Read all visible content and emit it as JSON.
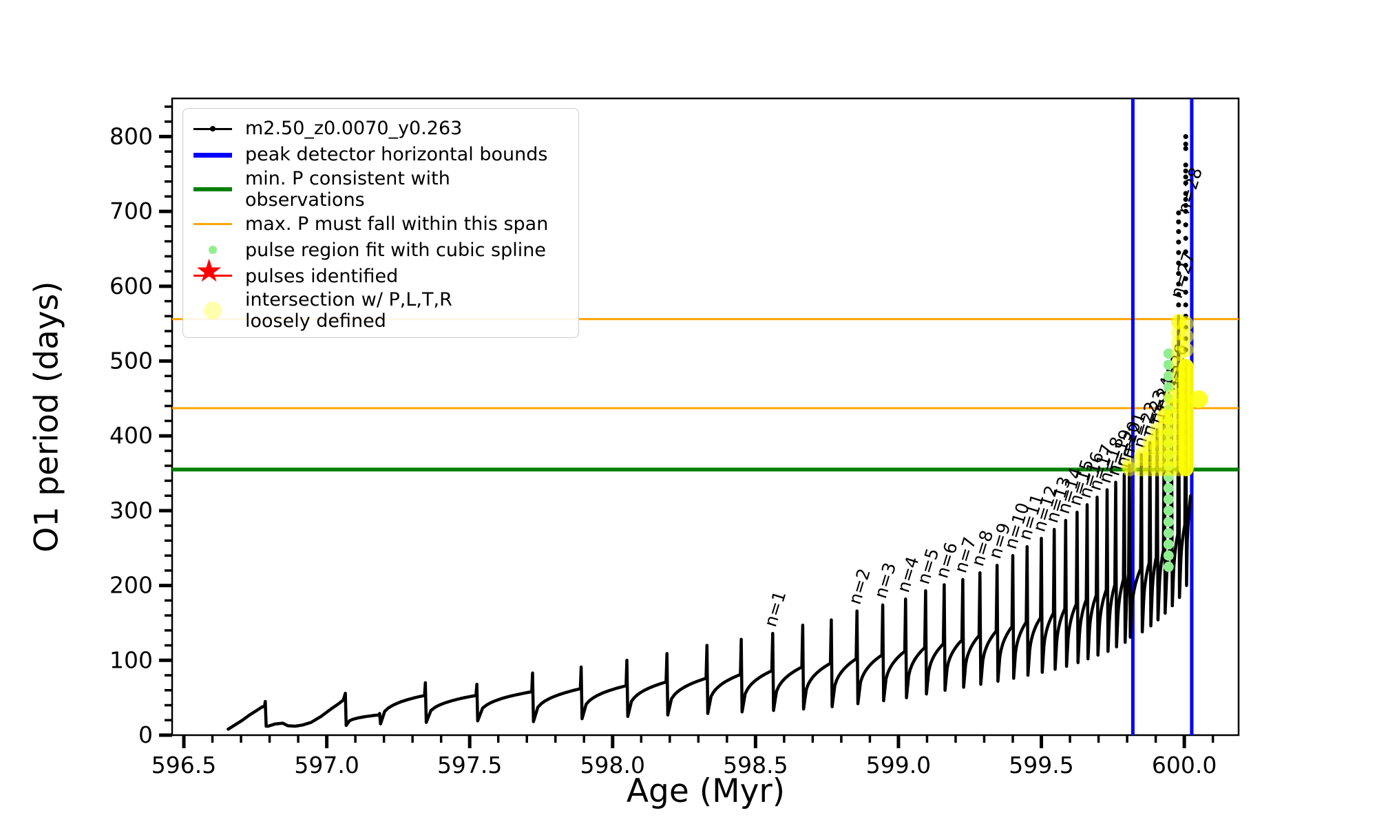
{
  "axes": {
    "xlabel": "Age (Myr)",
    "ylabel": "O1 period (days)",
    "xlim": [
      596.459,
      600.19
    ],
    "ylim": [
      0,
      851
    ],
    "xtick_values": [
      596.5,
      597.0,
      597.5,
      598.0,
      598.5,
      599.0,
      599.5,
      600.0
    ],
    "xtick_labels": [
      "596.5",
      "597.0",
      "597.5",
      "598.0",
      "598.5",
      "599.0",
      "599.5",
      "600.0"
    ],
    "xminor_step": 0.1,
    "ytick_values": [
      0,
      100,
      200,
      300,
      400,
      500,
      600,
      700,
      800
    ],
    "ytick_labels": [
      "0",
      "100",
      "200",
      "300",
      "400",
      "500",
      "600",
      "700",
      "800"
    ],
    "yminor_step": 20
  },
  "legend": {
    "items": [
      {
        "handle": "line-dot",
        "color": "#000000",
        "label": "m2.50_z0.0070_y0.263"
      },
      {
        "handle": "thick-blue",
        "color": "#0000ff",
        "label": "peak detector horizontal bounds"
      },
      {
        "handle": "thick-green",
        "color": "#008000",
        "label": "min. P consistent with observations"
      },
      {
        "handle": "thin-orange",
        "color": "#ffa500",
        "label": "max. P must fall within this span"
      },
      {
        "handle": "dot-green",
        "color": "#90ee90",
        "label": "pulse region fit with cubic spline"
      },
      {
        "handle": "star-red",
        "color": "#ff0000",
        "label": "pulses identified"
      },
      {
        "handle": "dot-yellow",
        "color": "#ffff00",
        "label": "intersection w/ P,L,T,R",
        "label2": "loosely defined"
      }
    ]
  },
  "chart_data": {
    "type": "line",
    "title": "",
    "xlabel": "Age (Myr)",
    "ylabel": "O1 period (days)",
    "series_label": "m2.50_z0.0070_y0.263",
    "series_color": "#000000",
    "lead_in": [
      [
        596.655,
        8
      ],
      [
        596.68,
        14
      ],
      [
        596.705,
        20
      ],
      [
        596.73,
        27
      ],
      [
        596.755,
        33
      ],
      [
        596.775,
        38
      ]
    ],
    "pulses": [
      {
        "x": 596.785,
        "top": 45,
        "end": 38,
        "dip": 12
      },
      {
        "x": 597.065,
        "top": 56,
        "end": 48,
        "dip": 13,
        "ramp": [
          [
            596.795,
            12
          ],
          [
            596.82,
            15
          ],
          [
            596.846,
            16
          ],
          [
            596.864,
            12.5
          ],
          [
            596.89,
            12
          ],
          [
            596.915,
            13.5
          ],
          [
            596.945,
            17
          ],
          [
            596.98,
            25
          ],
          [
            597.015,
            35
          ],
          [
            597.045,
            43
          ],
          [
            597.058,
            47
          ]
        ]
      },
      {
        "x": 597.185,
        "top": 29,
        "end": 27,
        "dip": 15
      },
      {
        "x": 597.345,
        "top": 70,
        "end": 53,
        "dip": 17
      },
      {
        "x": 597.525,
        "top": 68,
        "end": 53,
        "dip": 19
      },
      {
        "x": 597.72,
        "top": 83,
        "end": 58,
        "dip": 18
      },
      {
        "x": 597.89,
        "top": 91,
        "end": 62,
        "dip": 22
      },
      {
        "x": 598.05,
        "top": 100,
        "end": 66,
        "dip": 25
      },
      {
        "x": 598.19,
        "top": 109,
        "end": 71,
        "dip": 27
      },
      {
        "x": 598.33,
        "top": 120,
        "end": 76,
        "dip": 29
      },
      {
        "x": 598.45,
        "top": 128,
        "end": 81,
        "dip": 31
      },
      {
        "x": 598.56,
        "top": 136,
        "end": 86,
        "dip": 33,
        "label": "n=1"
      },
      {
        "x": 598.665,
        "top": 147,
        "end": 91,
        "dip": 35
      },
      {
        "x": 598.765,
        "top": 154,
        "end": 96,
        "dip": 38
      },
      {
        "x": 598.855,
        "top": 166,
        "end": 102,
        "dip": 42,
        "label": "n=2"
      },
      {
        "x": 598.945,
        "top": 174,
        "end": 107,
        "dip": 46,
        "label": "n=3"
      },
      {
        "x": 599.025,
        "top": 182,
        "end": 112,
        "dip": 50,
        "label": "n=4"
      },
      {
        "x": 599.095,
        "top": 193,
        "end": 117,
        "dip": 55,
        "label": "n=5"
      },
      {
        "x": 599.16,
        "top": 201,
        "end": 122,
        "dip": 60,
        "label": "n=6"
      },
      {
        "x": 599.225,
        "top": 208,
        "end": 127,
        "dip": 64,
        "label": "n=7"
      },
      {
        "x": 599.285,
        "top": 217,
        "end": 133,
        "dip": 68,
        "label": "n=8"
      },
      {
        "x": 599.345,
        "top": 227,
        "end": 139,
        "dip": 72,
        "label": "n=9"
      },
      {
        "x": 599.4,
        "top": 240,
        "end": 145,
        "dip": 76,
        "label": "n=10"
      },
      {
        "x": 599.45,
        "top": 252,
        "end": 151,
        "dip": 80,
        "label": "n=11"
      },
      {
        "x": 599.5,
        "top": 263,
        "end": 157,
        "dip": 84,
        "label": "n=12"
      },
      {
        "x": 599.545,
        "top": 275,
        "end": 163,
        "dip": 88,
        "label": "n=13"
      },
      {
        "x": 599.585,
        "top": 287,
        "end": 169,
        "dip": 92,
        "label": "n=14"
      },
      {
        "x": 599.625,
        "top": 298,
        "end": 175,
        "dip": 97,
        "label": "n=15"
      },
      {
        "x": 599.66,
        "top": 308,
        "end": 181,
        "dip": 102,
        "label": "n=16"
      },
      {
        "x": 599.695,
        "top": 318,
        "end": 187,
        "dip": 107,
        "label": "n=17"
      },
      {
        "x": 599.73,
        "top": 328,
        "end": 194,
        "dip": 112,
        "label": "n=18"
      },
      {
        "x": 599.76,
        "top": 338,
        "end": 201,
        "dip": 118,
        "label": "n=19"
      },
      {
        "x": 599.79,
        "top": 349,
        "end": 208,
        "dip": 124,
        "label": "n=20"
      },
      {
        "x": 599.808,
        "top": 361,
        "end": 215,
        "dip": 131,
        "label": "n=21"
      },
      {
        "x": 599.85,
        "top": 375,
        "end": 222,
        "dip": 138,
        "label": "n=22"
      },
      {
        "x": 599.88,
        "top": 391,
        "end": 230,
        "dip": 146,
        "label": "n=23"
      },
      {
        "x": 599.905,
        "top": 408,
        "end": 238,
        "dip": 154,
        "label": "n=24"
      },
      {
        "x": 599.93,
        "top": 426,
        "end": 247,
        "dip": 163,
        "label": "n=25"
      },
      {
        "x": 599.955,
        "top": 452,
        "end": 257,
        "dip": 173,
        "label": "n=26"
      },
      {
        "x": 599.98,
        "top": 560,
        "end": 268,
        "dip": 184,
        "label": "n=27",
        "label_y": 575,
        "dots": [
          575,
          589,
          603,
          617,
          631,
          645,
          659,
          673,
          686,
          698
        ]
      },
      {
        "x": 600.005,
        "top": 500,
        "end": 281,
        "dip": 200,
        "label": "n=28",
        "label_y": 688,
        "dots": [
          515,
          530,
          545,
          560,
          575,
          592,
          610,
          628,
          646,
          664,
          682,
          700,
          708,
          716,
          724,
          738,
          746,
          754,
          762,
          784,
          790,
          800
        ]
      }
    ],
    "tail": [
      600.022,
      320
    ],
    "hlines": [
      {
        "y": 556,
        "color": "#ffa500",
        "lw": 3,
        "role": "max P span upper"
      },
      {
        "y": 437,
        "color": "#ffa500",
        "lw": 3,
        "role": "max P span lower"
      },
      {
        "y": 355,
        "color": "#008000",
        "lw": 5.5,
        "role": "min P consistent with observations"
      }
    ],
    "vlines": [
      {
        "x": 599.82,
        "color": "#0000ff",
        "lw": 5,
        "role": "peak detector left bound"
      },
      {
        "x": 600.026,
        "color": "#0000ff",
        "lw": 5,
        "role": "peak detector right bound"
      }
    ],
    "spline_dots": {
      "x": 599.945,
      "y_from": 225,
      "y_to": 510,
      "step": 15,
      "color": "#90ee90"
    },
    "yellow_overlay": {
      "color": "#ffff00",
      "spike_chains": [
        {
          "x": 599.808,
          "y_from": 356,
          "y_to": 361
        },
        {
          "x": 599.85,
          "y_from": 356,
          "y_to": 375
        },
        {
          "x": 599.88,
          "y_from": 356,
          "y_to": 391
        },
        {
          "x": 599.905,
          "y_from": 356,
          "y_to": 408
        },
        {
          "x": 599.93,
          "y_from": 356,
          "y_to": 426
        },
        {
          "x": 599.955,
          "y_from": 356,
          "y_to": 452
        },
        {
          "x": 599.98,
          "y_from": 356,
          "y_to": 553
        }
      ],
      "bar": {
        "x": 600.006,
        "y_from": 346,
        "y_to": 503,
        "width": 22
      },
      "bar_top_chain": {
        "x": 600.006,
        "ys": [
          515,
          533,
          550
        ]
      },
      "side_dot": {
        "x": 600.051,
        "y": 449,
        "r": 13
      }
    }
  }
}
